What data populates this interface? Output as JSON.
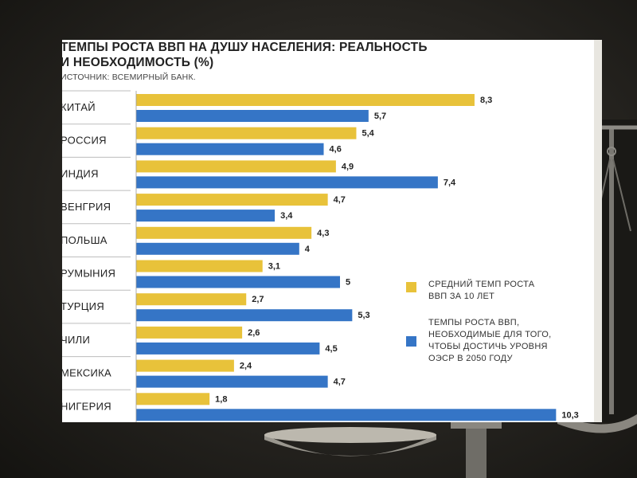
{
  "chart_data": {
    "type": "bar",
    "orientation": "horizontal",
    "title_lines": [
      "ТЕМПЫ РОСТА ВВП НА ДУШУ НАСЕЛЕНИЯ: РЕАЛЬНОСТЬ",
      "И НЕОБХОДИМОСТЬ (%)"
    ],
    "subtitle": "ИСТОЧНИК: ВСЕМИРНЫЙ БАНК.",
    "categories": [
      "КИТАЙ",
      "РОССИЯ",
      "ИНДИЯ",
      "ВЕНГРИЯ",
      "ПОЛЬША",
      "РУМЫНИЯ",
      "ТУРЦИЯ",
      "ЧИЛИ",
      "МЕКСИКА",
      "НИГЕРИЯ"
    ],
    "series": [
      {
        "name": "СРЕДНИЙ ТЕМП РОСТА ВВП ЗА 10 ЛЕТ",
        "legend_lines": [
          "СРЕДНИЙ ТЕМП РОСТА",
          "ВВП ЗА 10 ЛЕТ"
        ],
        "color": "#e8c23a",
        "values": [
          8.3,
          5.4,
          4.9,
          4.7,
          4.3,
          3.1,
          2.7,
          2.6,
          2.4,
          1.8
        ],
        "labels": [
          "8,3",
          "5,4",
          "4,9",
          "4,7",
          "4,3",
          "3,1",
          "2,7",
          "2,6",
          "2,4",
          "1,8"
        ]
      },
      {
        "name": "ТЕМПЫ РОСТА ВВП, НЕОБХОДИМЫЕ ДЛЯ ТОГО, ЧТОБЫ ДОСТИЧЬ УРОВНЯ ОЭСР В 2050 ГОДУ",
        "legend_lines": [
          "ТЕМПЫ РОСТА ВВП,",
          "НЕОБХОДИМЫЕ ДЛЯ ТОГО,",
          "ЧТОБЫ ДОСТИЧЬ УРОВНЯ",
          "ОЭСР В 2050 ГОДУ"
        ],
        "color": "#3575c6",
        "values": [
          5.7,
          4.6,
          7.4,
          3.4,
          4.0,
          5.0,
          5.3,
          4.5,
          4.7,
          10.3
        ],
        "labels": [
          "5,7",
          "4,6",
          "7,4",
          "3,4",
          "4",
          "5",
          "5,3",
          "4,5",
          "4,7",
          "10,3"
        ]
      }
    ],
    "xlim": [
      0,
      10.3
    ],
    "grid": false,
    "legend_position": "right"
  },
  "colors": {
    "background": "#1d1b17",
    "panel": "#ffffff",
    "text": "#222222",
    "separator": "#bdbdbd"
  }
}
